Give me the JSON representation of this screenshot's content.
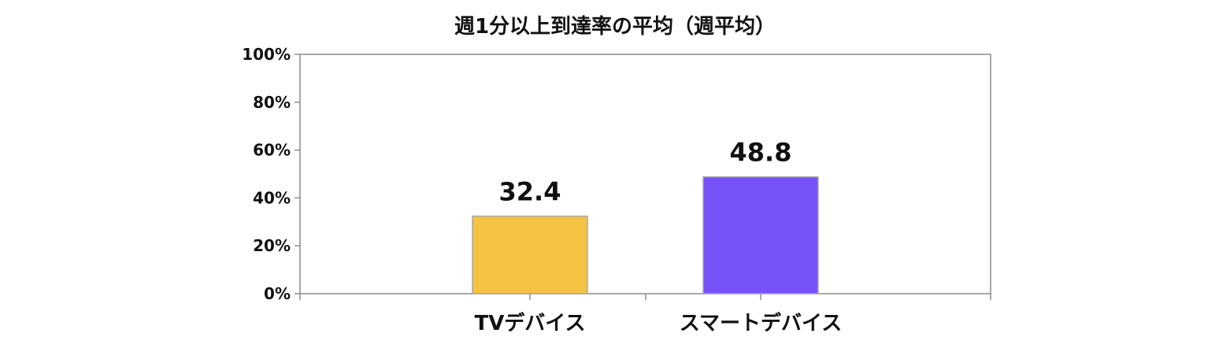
{
  "chart_data": {
    "type": "bar",
    "title": "週1分以上到達率の平均（週平均）",
    "categories": [
      "TVデバイス",
      "スマートデバイス"
    ],
    "values": [
      32.4,
      48.8
    ],
    "data_labels": [
      "32.4",
      "48.8"
    ],
    "colors": [
      "#F5C242",
      "#7752F8"
    ],
    "ylim": [
      0,
      100
    ],
    "yticks": [
      0,
      20,
      40,
      60,
      80,
      100
    ],
    "ytick_labels": [
      "0%",
      "20%",
      "40%",
      "60%",
      "80%",
      "100%"
    ],
    "xlabel": "",
    "ylabel": "",
    "grid": false,
    "legend": "none"
  }
}
